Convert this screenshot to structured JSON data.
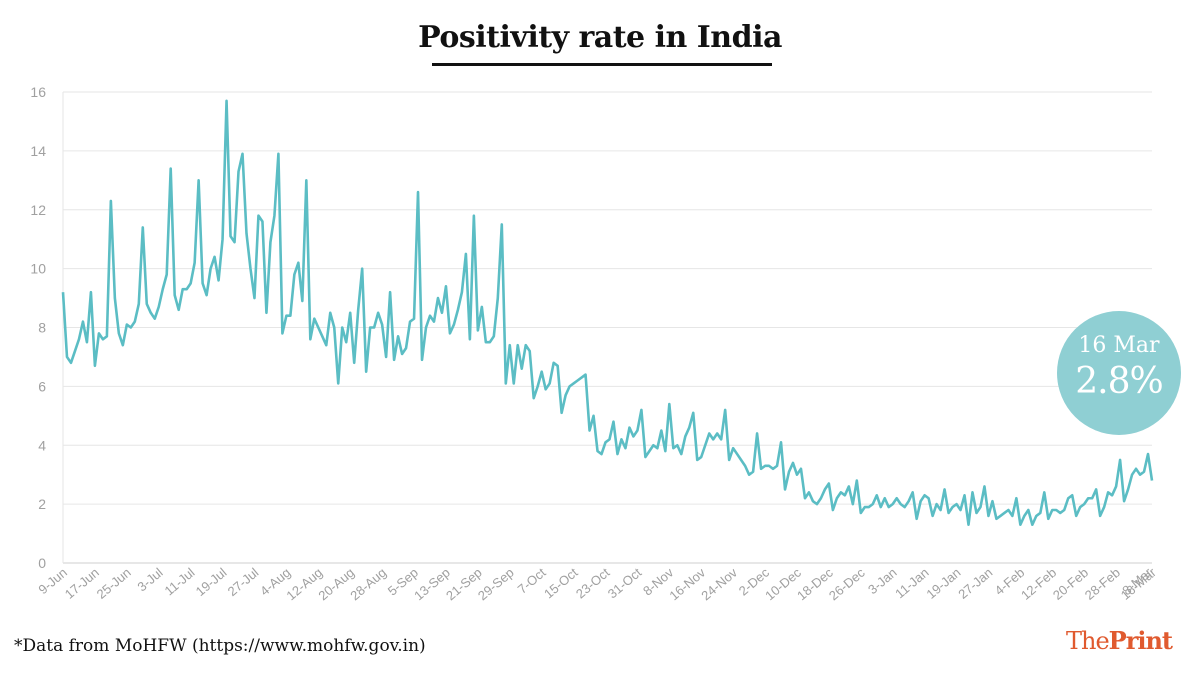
{
  "title": "Positivity rate in India",
  "callout": {
    "date": "16 Mar",
    "value": "2.8%"
  },
  "footer": {
    "source": "*Data from MoHFW (https://www.mohfw.gov.in)",
    "brand_the": "The",
    "brand_print": "Print"
  },
  "colors": {
    "line": "#5bbdc4",
    "callout": "#8fcfd3",
    "grid": "#e6e6e6",
    "tick": "#a0a0a0",
    "brand": "#e05a2f"
  },
  "chart_data": {
    "type": "line",
    "title": "Positivity rate in India",
    "xlabel": "",
    "ylabel": "",
    "ylim": [
      0,
      16
    ],
    "yticks": [
      0,
      2,
      4,
      6,
      8,
      10,
      12,
      14,
      16
    ],
    "grid": true,
    "x_start": "9-Jun",
    "x_end": "16-Mar",
    "xtick_labels": [
      "9-Jun",
      "17-Jun",
      "25-Jun",
      "3-Jul",
      "11-Jul",
      "19-Jul",
      "27-Jul",
      "4-Aug",
      "12-Aug",
      "20-Aug",
      "28-Aug",
      "5-Sep",
      "13-Sep",
      "21-Sep",
      "29-Sep",
      "7-Oct",
      "15-Oct",
      "23-Oct",
      "31-Oct",
      "8-Nov",
      "16-Nov",
      "24-Nov",
      "2-Dec",
      "10-Dec",
      "18-Dec",
      "26-Dec",
      "3-Jan",
      "11-Jan",
      "19-Jan",
      "27-Jan",
      "4-Feb",
      "12-Feb",
      "20-Feb",
      "28-Feb",
      "8-Mar",
      "16-Mar"
    ],
    "series": [
      {
        "values": [
          9.2,
          7.0,
          6.8,
          7.2,
          7.6,
          8.2,
          7.5,
          9.2,
          6.7,
          7.8,
          7.6,
          7.7,
          12.3,
          9.0,
          7.8,
          7.4,
          8.1,
          8.0,
          8.2,
          8.8,
          11.4,
          8.8,
          8.5,
          8.3,
          8.7,
          9.3,
          9.8,
          13.4,
          9.1,
          8.6,
          9.3,
          9.3,
          9.5,
          10.2,
          13.0,
          9.5,
          9.1,
          10.0,
          10.4,
          9.6,
          11.0,
          15.7,
          11.1,
          10.9,
          13.3,
          13.9,
          11.2,
          10.0,
          9.0,
          11.8,
          11.6,
          8.5,
          10.9,
          11.8,
          13.9,
          7.8,
          8.4,
          8.4,
          9.8,
          10.2,
          8.9,
          13.0,
          7.6,
          8.3,
          8.0,
          7.7,
          7.4,
          8.5,
          8.0,
          6.1,
          8.0,
          7.5,
          8.5,
          6.8,
          8.6,
          10.0,
          6.5,
          8.0,
          8.0,
          8.5,
          8.1,
          7.0,
          9.2,
          6.9,
          7.7,
          7.1,
          7.3,
          8.2,
          8.3,
          12.6,
          6.9,
          8.0,
          8.4,
          8.2,
          9.0,
          8.5,
          9.4,
          7.8,
          8.1,
          8.6,
          9.2,
          10.5,
          7.6,
          11.8,
          7.9,
          8.7,
          7.5,
          7.5,
          7.7,
          9.0,
          11.5,
          6.1,
          7.4,
          6.1,
          7.4,
          6.6,
          7.4,
          7.2,
          5.6,
          6.0,
          6.5,
          5.9,
          6.1,
          6.8,
          6.7,
          5.1,
          5.7,
          6.0,
          6.1,
          6.2,
          6.3,
          6.4,
          4.5,
          5.0,
          3.8,
          3.7,
          4.1,
          4.2,
          4.8,
          3.7,
          4.2,
          3.9,
          4.6,
          4.3,
          4.5,
          5.2,
          3.6,
          3.8,
          4.0,
          3.9,
          4.5,
          3.8,
          5.4,
          3.9,
          4.0,
          3.7,
          4.3,
          4.6,
          5.1,
          3.5,
          3.6,
          4.0,
          4.4,
          4.2,
          4.4,
          4.2,
          5.2,
          3.5,
          3.9,
          3.7,
          3.5,
          3.3,
          3.0,
          3.1,
          4.4,
          3.2,
          3.3,
          3.3,
          3.2,
          3.3,
          4.1,
          2.5,
          3.1,
          3.4,
          3.0,
          3.2,
          2.2,
          2.4,
          2.1,
          2.0,
          2.2,
          2.5,
          2.7,
          1.8,
          2.2,
          2.4,
          2.3,
          2.6,
          2.0,
          2.8,
          1.7,
          1.9,
          1.9,
          2.0,
          2.3,
          1.9,
          2.2,
          1.9,
          2.0,
          2.2,
          2.0,
          1.9,
          2.1,
          2.4,
          1.5,
          2.1,
          2.3,
          2.2,
          1.6,
          2.0,
          1.8,
          2.5,
          1.7,
          1.9,
          2.0,
          1.8,
          2.3,
          1.3,
          2.4,
          1.7,
          1.9,
          2.6,
          1.6,
          2.1,
          1.5,
          1.6,
          1.7,
          1.8,
          1.6,
          2.2,
          1.3,
          1.6,
          1.8,
          1.3,
          1.6,
          1.7,
          2.4,
          1.5,
          1.8,
          1.8,
          1.7,
          1.8,
          2.2,
          2.3,
          1.6,
          1.9,
          2.0,
          2.2,
          2.2,
          2.5,
          1.6,
          1.9,
          2.4,
          2.3,
          2.6,
          3.5,
          2.1,
          2.5,
          3.0,
          3.2,
          3.0,
          3.1,
          3.7,
          2.8
        ]
      }
    ]
  }
}
